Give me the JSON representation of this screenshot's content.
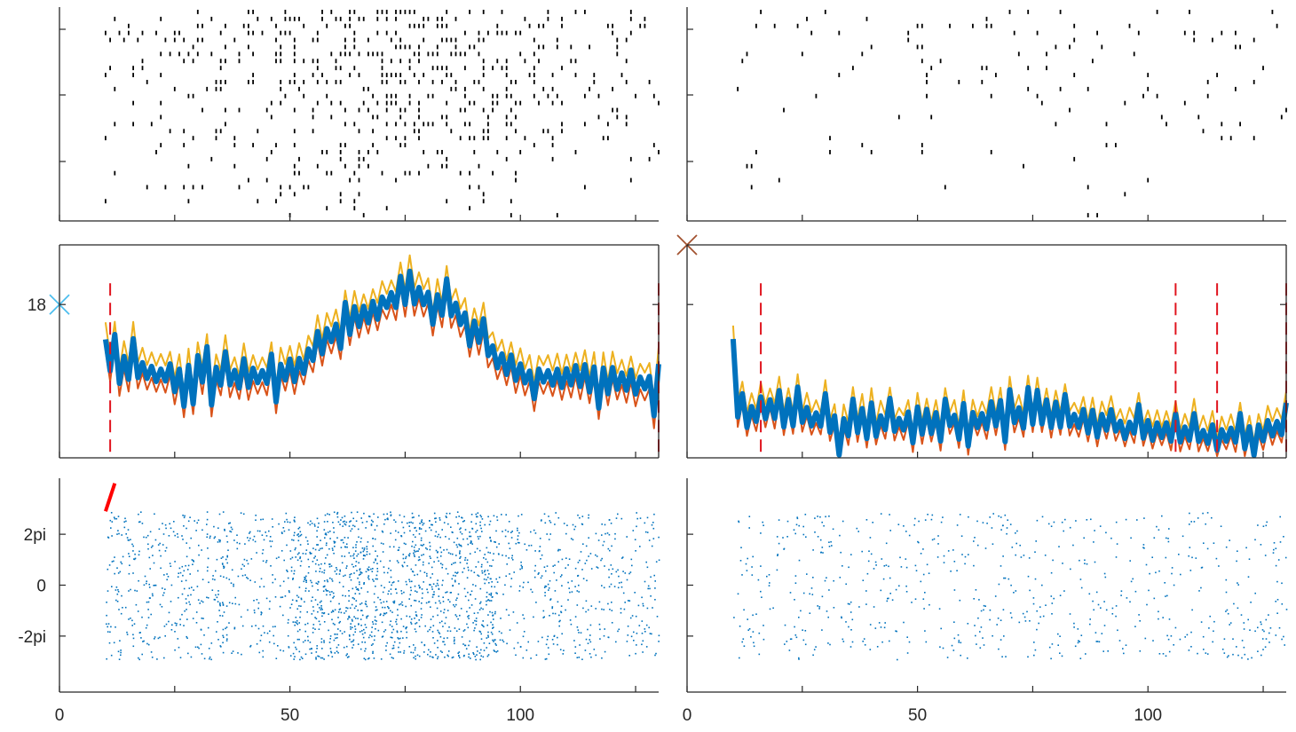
{
  "chart_data": {
    "type": "multi-panel",
    "layout": "3 rows x 2 columns, shared x axis per column",
    "colors": {
      "raster_ticks": "#000000",
      "mean_line": "#0072BD",
      "upper_line": "#EDB120",
      "lower_line": "#D95319",
      "event_lines": "#E0141E",
      "phase_dots": "#0072BD",
      "marker_left": "#4DBEEE",
      "marker_right": "#A2522F",
      "phase_marker": "#FF0000",
      "axes": "#262626"
    },
    "xlim": [
      0,
      130
    ],
    "x_ticks": [
      "0",
      "50",
      "100"
    ],
    "x_tick_values": [
      0,
      50,
      100
    ],
    "x_minor_ticks": [
      25,
      75,
      125
    ],
    "rows": [
      {
        "type": "raster",
        "ylabel": "",
        "y_ticks": [],
        "left_intensity": 1.0,
        "right_intensity": 0.32
      },
      {
        "type": "line",
        "ylabel": "",
        "y_ticks": [
          "18"
        ],
        "ylim": [
          0,
          25
        ],
        "y_tick_values": [
          18
        ],
        "series_names": [
          "upper",
          "mean",
          "lower"
        ],
        "left": {
          "marker": {
            "x": 0,
            "y": 18,
            "symbol": "x"
          },
          "event_lines_x": [
            11,
            130
          ],
          "x_start": 10,
          "x_end": 130,
          "step": 1,
          "mean_anchors": [
            [
              10,
              11.2
            ],
            [
              20,
              9.8
            ],
            [
              30,
              9.6
            ],
            [
              40,
              9.4
            ],
            [
              48,
              9.8
            ],
            [
              53,
              11
            ],
            [
              58,
              14.2
            ],
            [
              65,
              16.4
            ],
            [
              72,
              18.5
            ],
            [
              78,
              18.9
            ],
            [
              84,
              17.8
            ],
            [
              90,
              15.5
            ],
            [
              95,
              11.5
            ],
            [
              102,
              9.6
            ],
            [
              112,
              9.6
            ],
            [
              122,
              9.4
            ],
            [
              130,
              8.4
            ]
          ],
          "upper_offset": 1.4,
          "lower_offset": -1.2
        },
        "right": {
          "marker": {
            "x": 0,
            "y": 25,
            "symbol": "x"
          },
          "event_lines_x": [
            16,
            106,
            115,
            130
          ],
          "x_start": 10,
          "x_end": 130,
          "step": 1,
          "mean_anchors": [
            [
              10,
              10.5
            ],
            [
              12,
              4.5
            ],
            [
              18,
              5.5
            ],
            [
              25,
              5.0
            ],
            [
              32,
              3.8
            ],
            [
              45,
              3.9
            ],
            [
              60,
              4.5
            ],
            [
              70,
              4.7
            ],
            [
              80,
              4.9
            ],
            [
              88,
              4.2
            ],
            [
              100,
              3.2
            ],
            [
              110,
              2.6
            ],
            [
              120,
              2.8
            ],
            [
              128,
              3.2
            ],
            [
              130,
              5.5
            ]
          ],
          "upper_offset": 1.2,
          "lower_offset": -0.9
        }
      },
      {
        "type": "scatter",
        "ylabel": "",
        "y_ticks": [
          "2pi",
          "0",
          "-2pi"
        ],
        "ylim": [
          -4.2,
          4.2
        ],
        "y_tick_values": [
          2,
          0,
          -2
        ],
        "left": {
          "density": 1.0,
          "phase_marker": [
            [
              10,
              2.9
            ],
            [
              12,
              4.0
            ]
          ]
        },
        "right": {
          "density": 0.3
        }
      }
    ]
  }
}
